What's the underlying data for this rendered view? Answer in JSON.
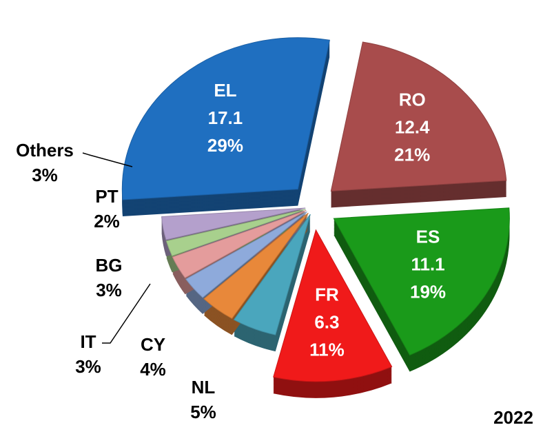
{
  "chart_data": {
    "type": "pie",
    "categories": [
      "EL",
      "RO",
      "ES",
      "FR",
      "NL",
      "CY",
      "IT",
      "BG",
      "PT",
      "Others"
    ],
    "values": [
      29,
      21,
      19,
      11,
      5,
      4,
      3,
      3,
      2,
      3
    ],
    "value_labels": [
      "29%",
      "21%",
      "19%",
      "11%",
      "5%",
      "4%",
      "3%",
      "3%",
      "2%",
      "3%"
    ],
    "amounts": [
      17.1,
      12.4,
      11.1,
      6.3,
      null,
      null,
      null,
      null,
      null,
      null
    ],
    "colors": [
      "#1f6fc0",
      "#a84c4c",
      "#1a9a1a",
      "#f01a1a",
      "#4aa6bd",
      "#e8883a",
      "#8eaadb",
      "#e49c9c",
      "#a8d08d",
      "#b4a0cc"
    ],
    "annotation": "2022"
  }
}
